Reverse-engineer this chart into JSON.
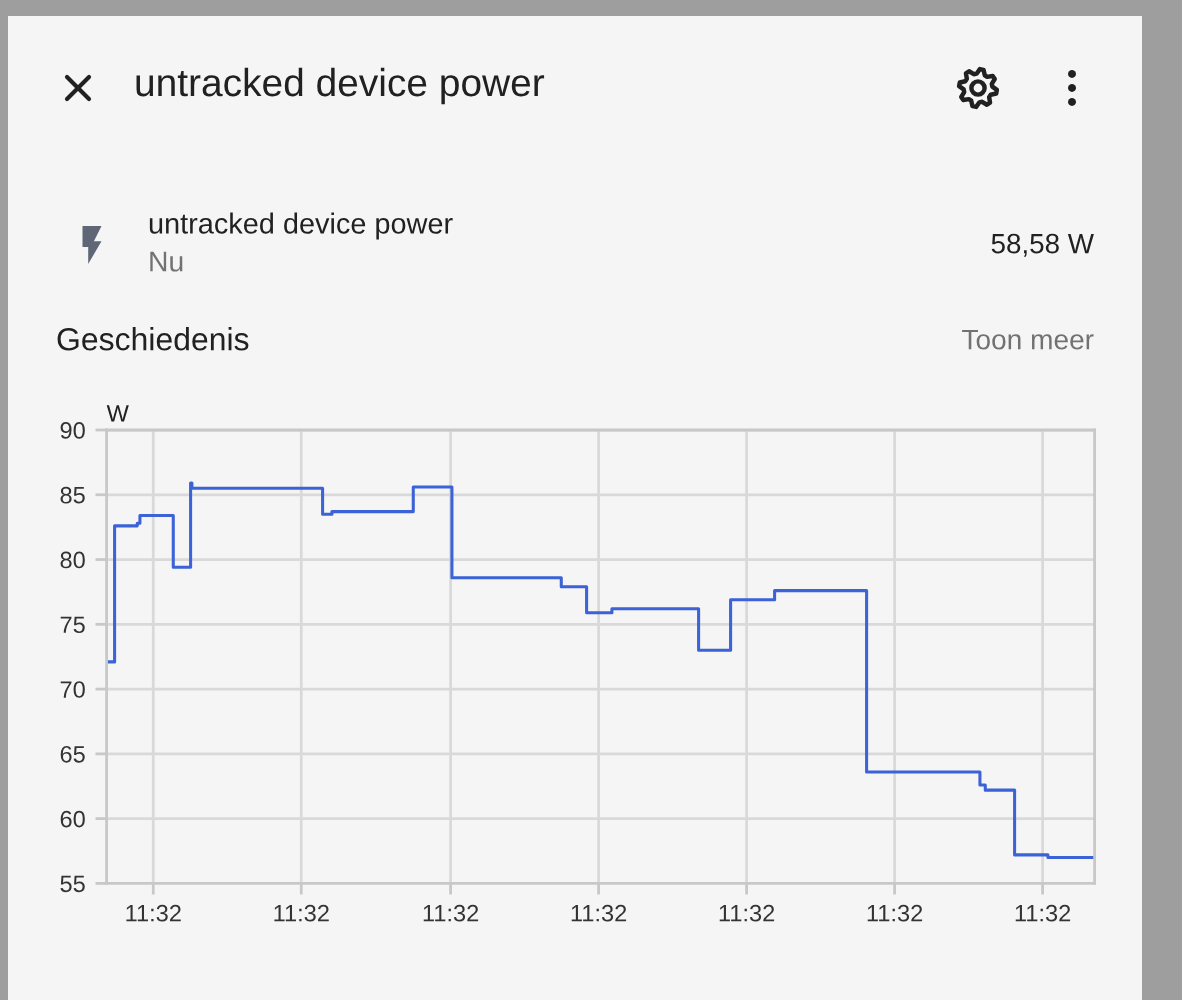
{
  "chart_data": {
    "type": "step",
    "title": "untracked device power",
    "ylabel": "W",
    "annotations": [
      "untracked device power",
      "Nu",
      "58,58 W",
      "Geschiedenis",
      "Toon meer"
    ],
    "x": [
      11.53299,
      11.53304,
      11.53321,
      11.53323,
      11.53348,
      11.53361,
      11.53362,
      11.5346,
      11.53467,
      11.53528,
      11.53557,
      11.53639,
      11.53658,
      11.53677,
      11.53742,
      11.53766,
      11.53799,
      11.53868,
      11.53953,
      11.53957,
      11.53979,
      11.54004,
      11.54038
    ],
    "series": [
      {
        "color": "#3b62d6",
        "values": [
          72.1,
          82.6,
          82.8,
          83.4,
          79.4,
          85.9,
          85.5,
          83.5,
          83.7,
          85.6,
          78.6,
          77.9,
          75.9,
          76.2,
          73.0,
          76.9,
          77.6,
          63.6,
          62.6,
          62.2,
          57.2,
          57.0,
          57.0
        ]
      }
    ],
    "xlim": [
      11.53298,
      11.54039
    ],
    "xticks": [
      {
        "value": 11.53333,
        "label": "11:32"
      },
      {
        "value": 11.53444,
        "label": "11:32"
      },
      {
        "value": 11.53556,
        "label": "11:32"
      },
      {
        "value": 11.53667,
        "label": "11:32"
      },
      {
        "value": 11.53778,
        "label": "11:32"
      },
      {
        "value": 11.53889,
        "label": "11:32"
      },
      {
        "value": 11.54,
        "label": "11:32"
      }
    ],
    "ylim": [
      55,
      90
    ],
    "yticks": [
      55,
      60,
      65,
      70,
      75,
      80,
      85,
      90
    ],
    "grid": true,
    "line_style": "solid"
  }
}
